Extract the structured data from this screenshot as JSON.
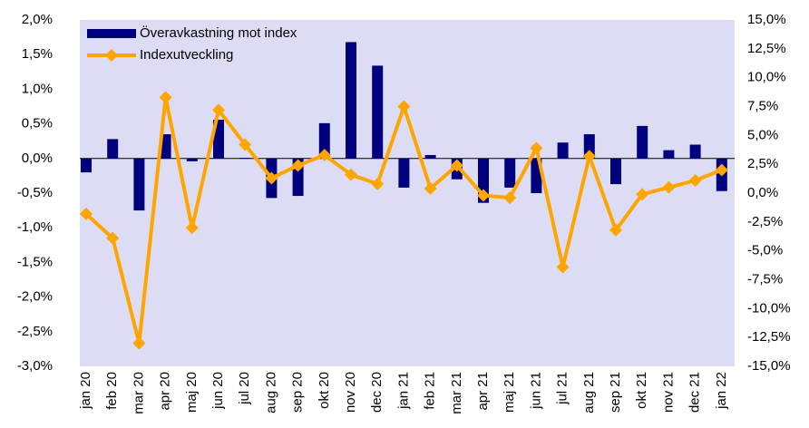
{
  "chart_data": {
    "type": "bar",
    "categories": [
      "jan 20",
      "feb 20",
      "mar 20",
      "apr 20",
      "maj 20",
      "jun 20",
      "jul 20",
      "aug 20",
      "sep 20",
      "okt 20",
      "nov 20",
      "dec 20",
      "jan 21",
      "feb 21",
      "mar 21",
      "apr 21",
      "maj 21",
      "jun 21",
      "jul 21",
      "aug 21",
      "sep 21",
      "okt 21",
      "nov 21",
      "dec 21",
      "jan 22"
    ],
    "series": [
      {
        "name": "Överavkastning mot index",
        "type": "bar",
        "color": "#00007f",
        "values": [
          -0.2,
          0.28,
          -0.75,
          0.35,
          -0.04,
          0.56,
          0.01,
          -0.57,
          -0.54,
          0.51,
          1.68,
          1.34,
          -0.42,
          0.05,
          -0.3,
          -0.64,
          -0.42,
          -0.5,
          0.23,
          0.35,
          -0.37,
          0.47,
          0.12,
          0.2,
          -0.47
        ]
      },
      {
        "name": "Indexutveckling",
        "type": "line",
        "axis": "y2",
        "color": "#ffa500",
        "values": [
          -1.8,
          -3.9,
          -13.0,
          8.3,
          -3.0,
          7.2,
          4.2,
          1.3,
          2.4,
          3.3,
          1.6,
          0.8,
          7.5,
          0.4,
          2.4,
          -0.2,
          -0.4,
          3.9,
          -6.4,
          3.2,
          -3.2,
          -0.1,
          0.5,
          1.1,
          2.0
        ]
      }
    ],
    "ylim": [
      -3.0,
      2.0
    ],
    "yticks": [
      {
        "value": 2.0,
        "label": "2,0%"
      },
      {
        "value": 1.5,
        "label": "1,5%"
      },
      {
        "value": 1.0,
        "label": "1,0%"
      },
      {
        "value": 0.5,
        "label": "0,5%"
      },
      {
        "value": 0,
        "label": "0,0%"
      },
      {
        "value": -0.5,
        "label": "-0,5%"
      },
      {
        "value": -1.0,
        "label": "-1,0%"
      },
      {
        "value": -1.5,
        "label": "-1,5%"
      },
      {
        "value": -2.0,
        "label": "-2,0%"
      },
      {
        "value": -2.5,
        "label": "-2,5%"
      },
      {
        "value": -3.0,
        "label": "-3,0%"
      }
    ],
    "y2lim": [
      -15.0,
      15.0
    ],
    "y2ticks": [
      {
        "value": 15.0,
        "label": "15,0%"
      },
      {
        "value": 12.5,
        "label": "12,5%"
      },
      {
        "value": 10.0,
        "label": "10,0%"
      },
      {
        "value": 7.5,
        "label": "7,5%"
      },
      {
        "value": 5.0,
        "label": "5,0%"
      },
      {
        "value": 2.5,
        "label": "2,5%"
      },
      {
        "value": 0,
        "label": "0,0%"
      },
      {
        "value": -2.5,
        "label": "-2,5%"
      },
      {
        "value": -5.0,
        "label": "-5,0%"
      },
      {
        "value": -7.5,
        "label": "-7,5%"
      },
      {
        "value": -10.0,
        "label": "-10,0%"
      },
      {
        "value": -12.5,
        "label": "-12,5%"
      },
      {
        "value": -15.0,
        "label": "-15,0%"
      }
    ],
    "legend": "top-left",
    "background": "#dcdcf5"
  }
}
